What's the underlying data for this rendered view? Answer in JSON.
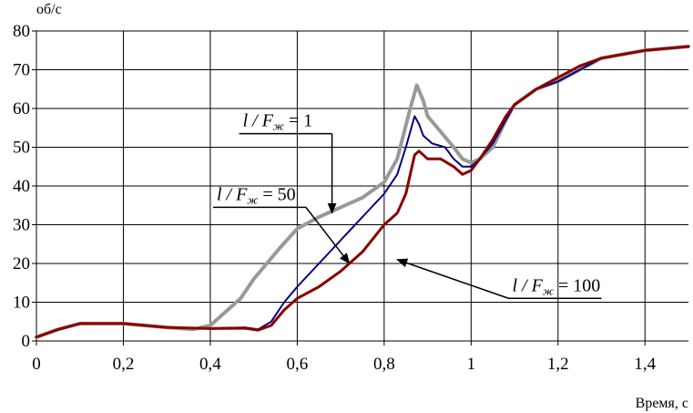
{
  "chart_data": {
    "type": "line",
    "title": "",
    "xlabel": "Время, с",
    "ylabel": "об/с",
    "xlim": [
      0,
      1.5
    ],
    "ylim": [
      0,
      80
    ],
    "x_ticks": [
      {
        "value": 0,
        "label": "0"
      },
      {
        "value": 0.2,
        "label": "0,2"
      },
      {
        "value": 0.4,
        "label": "0,4"
      },
      {
        "value": 0.6,
        "label": "0,6"
      },
      {
        "value": 0.8,
        "label": "0,8"
      },
      {
        "value": 1.0,
        "label": "1"
      },
      {
        "value": 1.2,
        "label": "1,2"
      },
      {
        "value": 1.4,
        "label": "1,4"
      }
    ],
    "y_ticks": [
      {
        "value": 0,
        "label": "0"
      },
      {
        "value": 10,
        "label": "10"
      },
      {
        "value": 20,
        "label": "20"
      },
      {
        "value": 30,
        "label": "30"
      },
      {
        "value": 40,
        "label": "40"
      },
      {
        "value": 50,
        "label": "50"
      },
      {
        "value": 60,
        "label": "60"
      },
      {
        "value": 70,
        "label": "70"
      },
      {
        "value": 80,
        "label": "80"
      }
    ],
    "grid": true,
    "series": [
      {
        "color": "#999999",
        "points": [
          [
            0,
            1
          ],
          [
            0.05,
            3
          ],
          [
            0.1,
            4.5
          ],
          [
            0.2,
            4.5
          ],
          [
            0.3,
            3.5
          ],
          [
            0.36,
            3
          ],
          [
            0.4,
            4
          ],
          [
            0.44,
            8
          ],
          [
            0.47,
            11
          ],
          [
            0.5,
            16
          ],
          [
            0.53,
            20
          ],
          [
            0.56,
            24
          ],
          [
            0.6,
            29
          ],
          [
            0.65,
            32
          ],
          [
            0.7,
            34.5
          ],
          [
            0.75,
            37
          ],
          [
            0.8,
            41
          ],
          [
            0.83,
            47
          ],
          [
            0.86,
            60
          ],
          [
            0.875,
            66
          ],
          [
            0.89,
            62
          ],
          [
            0.9,
            58
          ],
          [
            0.93,
            54
          ],
          [
            0.96,
            50
          ],
          [
            0.98,
            47
          ],
          [
            1.0,
            46
          ],
          [
            1.02,
            47
          ],
          [
            1.05,
            50
          ],
          [
            1.08,
            57
          ],
          [
            1.1,
            61
          ],
          [
            1.15,
            65
          ],
          [
            1.2,
            67
          ],
          [
            1.25,
            70
          ],
          [
            1.3,
            73
          ],
          [
            1.35,
            74
          ],
          [
            1.4,
            75
          ],
          [
            1.45,
            75.5
          ],
          [
            1.5,
            76
          ]
        ]
      },
      {
        "color": "#000080",
        "points": [
          [
            0,
            1
          ],
          [
            0.05,
            3
          ],
          [
            0.1,
            4.5
          ],
          [
            0.2,
            4.5
          ],
          [
            0.3,
            3.5
          ],
          [
            0.4,
            3.3
          ],
          [
            0.48,
            3.5
          ],
          [
            0.51,
            3
          ],
          [
            0.54,
            5
          ],
          [
            0.57,
            10
          ],
          [
            0.6,
            14
          ],
          [
            0.65,
            20
          ],
          [
            0.7,
            26
          ],
          [
            0.75,
            32
          ],
          [
            0.8,
            38
          ],
          [
            0.83,
            43
          ],
          [
            0.85,
            50
          ],
          [
            0.87,
            58
          ],
          [
            0.88,
            56
          ],
          [
            0.89,
            53
          ],
          [
            0.91,
            51
          ],
          [
            0.94,
            50
          ],
          [
            0.96,
            47
          ],
          [
            0.98,
            45
          ],
          [
            1.0,
            45
          ],
          [
            1.02,
            47
          ],
          [
            1.05,
            51
          ],
          [
            1.08,
            57
          ],
          [
            1.1,
            61
          ],
          [
            1.15,
            65
          ],
          [
            1.2,
            67
          ],
          [
            1.25,
            70
          ],
          [
            1.3,
            73
          ],
          [
            1.35,
            74
          ],
          [
            1.4,
            75
          ],
          [
            1.45,
            75.5
          ],
          [
            1.5,
            76
          ]
        ]
      },
      {
        "color": "#8b0000",
        "points": [
          [
            0,
            1
          ],
          [
            0.05,
            3
          ],
          [
            0.1,
            4.5
          ],
          [
            0.2,
            4.5
          ],
          [
            0.3,
            3.5
          ],
          [
            0.4,
            3.2
          ],
          [
            0.48,
            3.3
          ],
          [
            0.51,
            2.8
          ],
          [
            0.54,
            4
          ],
          [
            0.57,
            8
          ],
          [
            0.6,
            11
          ],
          [
            0.65,
            14
          ],
          [
            0.7,
            18
          ],
          [
            0.75,
            23
          ],
          [
            0.8,
            30
          ],
          [
            0.83,
            33
          ],
          [
            0.85,
            38
          ],
          [
            0.87,
            48
          ],
          [
            0.88,
            49
          ],
          [
            0.9,
            47
          ],
          [
            0.93,
            47
          ],
          [
            0.96,
            45
          ],
          [
            0.98,
            43
          ],
          [
            1.0,
            44
          ],
          [
            1.02,
            47
          ],
          [
            1.05,
            52
          ],
          [
            1.08,
            58
          ],
          [
            1.1,
            61
          ],
          [
            1.15,
            65
          ],
          [
            1.2,
            68
          ],
          [
            1.25,
            71
          ],
          [
            1.3,
            73
          ],
          [
            1.35,
            74
          ],
          [
            1.4,
            75
          ],
          [
            1.45,
            75.5
          ],
          [
            1.5,
            76
          ]
        ]
      }
    ],
    "annotations": [
      {
        "lhs": "l",
        "var": "F",
        "sub": "ж",
        "rel": "=",
        "value": "1",
        "target": [
          0.68,
          33
        ],
        "text_anchor": [
          0.68,
          53.5
        ]
      },
      {
        "lhs": "l",
        "var": "F",
        "sub": "ж",
        "rel": "=",
        "value": "50",
        "target": [
          0.72,
          20
        ],
        "text_anchor": [
          0.62,
          34.5
        ]
      },
      {
        "lhs": "l",
        "var": "F",
        "sub": "ж",
        "rel": "=",
        "value": "100",
        "target": [
          0.83,
          21
        ],
        "text_anchor": [
          1.3,
          11
        ]
      }
    ]
  }
}
